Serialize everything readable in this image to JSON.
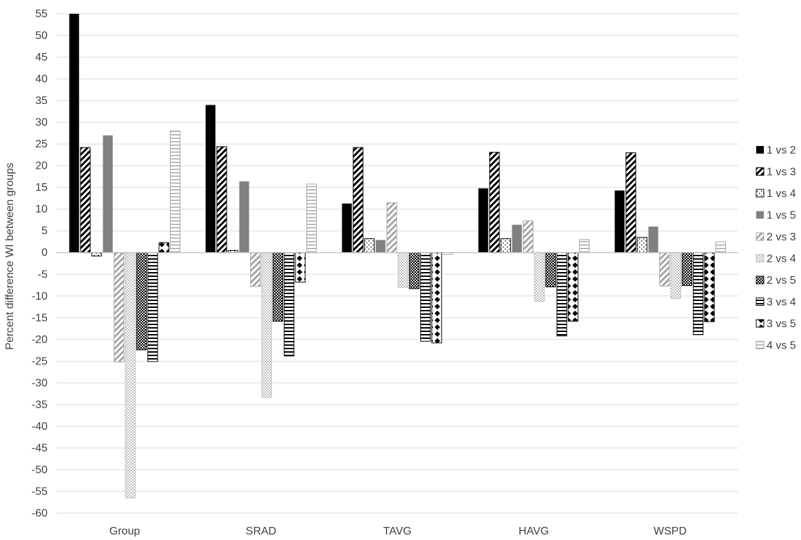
{
  "chart_data": {
    "type": "bar",
    "title": "",
    "xlabel": "",
    "ylabel": "Percent difference WI between groups",
    "ylim": [
      -60,
      55
    ],
    "yticks": [
      55,
      50,
      45,
      40,
      35,
      30,
      25,
      20,
      15,
      10,
      5,
      0,
      -5,
      -10,
      -15,
      -20,
      -25,
      -30,
      -35,
      -40,
      -45,
      -50,
      -55,
      -60
    ],
    "grid": true,
    "legend_position": "right",
    "categories": [
      "Group",
      "SRAD",
      "TAVG",
      "HAVG",
      "WSPD"
    ],
    "series": [
      {
        "name": "1 vs 2",
        "values": [
          55.0,
          34.0,
          11.3,
          14.8,
          14.3
        ]
      },
      {
        "name": "1 vs 3",
        "values": [
          24.2,
          24.4,
          24.2,
          23.1,
          23.0
        ]
      },
      {
        "name": "1 vs 4",
        "values": [
          -0.8,
          0.5,
          3.2,
          3.2,
          3.5
        ]
      },
      {
        "name": "1 vs 5",
        "values": [
          27.0,
          16.4,
          2.9,
          6.4,
          6.0
        ]
      },
      {
        "name": "2 vs 3",
        "values": [
          -25.2,
          -7.8,
          11.5,
          7.3,
          -7.7
        ]
      },
      {
        "name": "2 vs 4",
        "values": [
          -56.5,
          -33.3,
          -8.0,
          -11.2,
          -10.6
        ]
      },
      {
        "name": "2 vs 5",
        "values": [
          -22.4,
          -15.8,
          -8.3,
          -7.9,
          -7.6
        ]
      },
      {
        "name": "3 vs 4",
        "values": [
          -25.1,
          -23.8,
          -20.4,
          -19.2,
          -18.9
        ]
      },
      {
        "name": "3 vs 5",
        "values": [
          2.3,
          -6.8,
          -20.8,
          -15.8,
          -15.9
        ]
      },
      {
        "name": "4 vs 5",
        "values": [
          28.0,
          15.8,
          -0.4,
          3.0,
          2.5
        ]
      }
    ],
    "colors": {
      "grid": "#d9d9d9",
      "axis": "#bfbfbf",
      "text": "#404040"
    }
  }
}
